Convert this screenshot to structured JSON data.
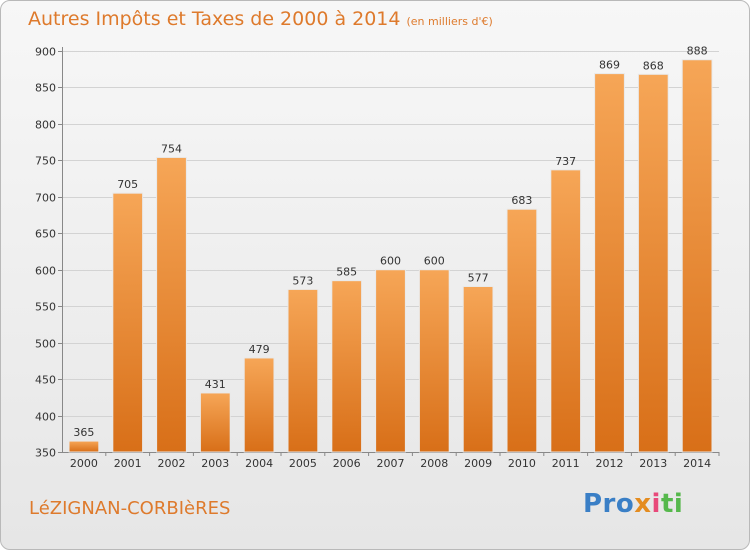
{
  "header": {
    "title": "Autres Impôts et Taxes de 2000 à 2014",
    "unit": "(en milliers d'€)"
  },
  "footer": {
    "commune": "LéZIGNAN-CORBIèRES",
    "brand_parts": [
      "Pro",
      "x",
      "i",
      "ti"
    ]
  },
  "colors": {
    "accent": "#de7a2c",
    "bar_top": "#f6a657",
    "bar_bottom": "#d86f18",
    "brand_blue": "#3a7fc6",
    "brand_orange": "#e48c20",
    "brand_pink": "#e8497a",
    "brand_green": "#56b84c"
  },
  "chart_data": {
    "type": "bar",
    "title": "Autres Impôts et Taxes de 2000 à 2014",
    "categories": [
      "2000",
      "2001",
      "2002",
      "2003",
      "2004",
      "2005",
      "2006",
      "2007",
      "2008",
      "2009",
      "2010",
      "2011",
      "2012",
      "2013",
      "2014"
    ],
    "values": [
      365,
      705,
      754,
      431,
      479,
      573,
      585,
      600,
      600,
      577,
      683,
      737,
      869,
      868,
      888
    ],
    "yticks": [
      350,
      400,
      450,
      500,
      550,
      600,
      650,
      700,
      750,
      800,
      850,
      900
    ],
    "ylim": [
      350,
      900
    ],
    "grid": true,
    "xlabel": "",
    "ylabel": ""
  }
}
